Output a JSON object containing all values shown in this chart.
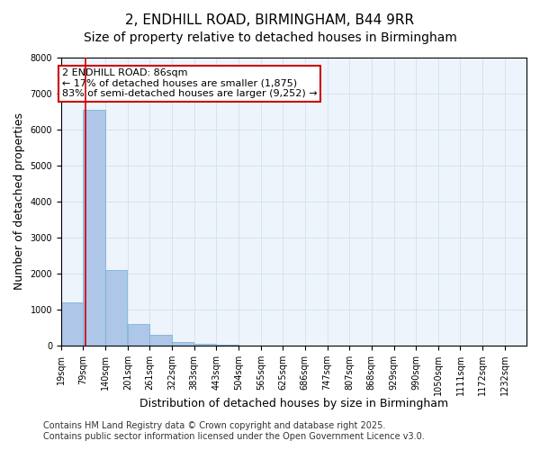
{
  "title_line1": "2, ENDHILL ROAD, BIRMINGHAM, B44 9RR",
  "title_line2": "Size of property relative to detached houses in Birmingham",
  "xlabel": "Distribution of detached houses by size in Birmingham",
  "ylabel": "Number of detached properties",
  "annotation_line1": "2 ENDHILL ROAD: 86sqm",
  "annotation_line2": "← 17% of detached houses are smaller (1,875)",
  "annotation_line3": "83% of semi-detached houses are larger (9,252) →",
  "property_size": 86,
  "footer_line1": "Contains HM Land Registry data © Crown copyright and database right 2025.",
  "footer_line2": "Contains public sector information licensed under the Open Government Licence v3.0.",
  "bin_labels": [
    "19sqm",
    "79sqm",
    "140sqm",
    "201sqm",
    "261sqm",
    "322sqm",
    "383sqm",
    "443sqm",
    "504sqm",
    "565sqm",
    "625sqm",
    "686sqm",
    "747sqm",
    "807sqm",
    "868sqm",
    "929sqm",
    "990sqm",
    "1050sqm",
    "1111sqm",
    "1172sqm",
    "1232sqm"
  ],
  "bin_edges": [
    19,
    79,
    140,
    201,
    261,
    322,
    383,
    443,
    504,
    565,
    625,
    686,
    747,
    807,
    868,
    929,
    990,
    1050,
    1111,
    1172,
    1232
  ],
  "bar_heights": [
    1200,
    6550,
    2100,
    600,
    300,
    100,
    50,
    20,
    10,
    5,
    3,
    2,
    1,
    1,
    1,
    0,
    0,
    0,
    0,
    0
  ],
  "bar_color": "#aec6e8",
  "bar_edge_color": "#6baed6",
  "vline_color": "#cc0000",
  "vline_x": 86,
  "ylim": [
    0,
    8000
  ],
  "yticks": [
    0,
    1000,
    2000,
    3000,
    4000,
    5000,
    6000,
    7000,
    8000
  ],
  "grid_color": "#ccddee",
  "annotation_box_color": "#cc0000",
  "annotation_bg": "#ffffff",
  "title_fontsize": 11,
  "subtitle_fontsize": 10,
  "axis_label_fontsize": 9,
  "tick_fontsize": 7,
  "annotation_fontsize": 8,
  "footer_fontsize": 7
}
